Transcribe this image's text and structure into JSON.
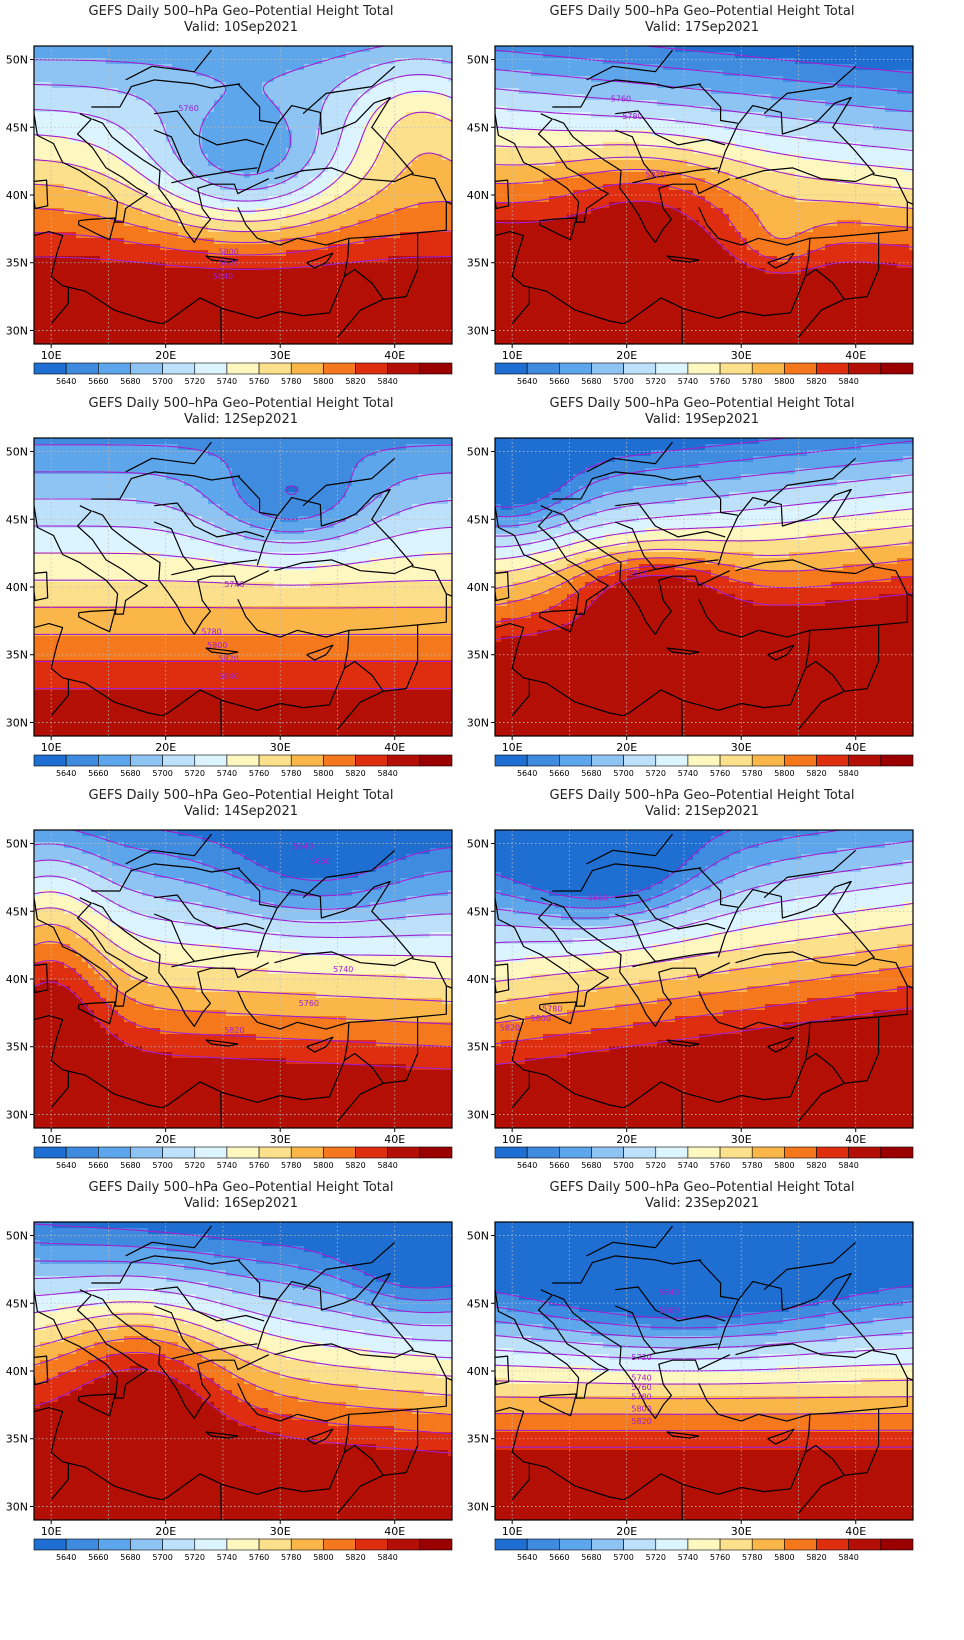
{
  "title_line": "GEFS Daily 500–hPa Geo–Potential Height Total",
  "valid_prefix": "Valid:",
  "lon_ticks": [
    "10E",
    "20E",
    "30E",
    "40E"
  ],
  "lat_ticks": [
    "50N",
    "45N",
    "40N",
    "35N",
    "30N"
  ],
  "colorbar": {
    "labels": [
      "5640",
      "5660",
      "5680",
      "5700",
      "5720",
      "5740",
      "5760",
      "5780",
      "5800",
      "5820",
      "5840"
    ],
    "colors": [
      "#1f6fd3",
      "#3f8be0",
      "#5ea6ec",
      "#8ec4f3",
      "#bde1fa",
      "#dcf4ff",
      "#fff7c0",
      "#fde08c",
      "#fbb64a",
      "#f6781d",
      "#df2d10",
      "#b30f04",
      "#9a0000"
    ]
  },
  "contour_color": "#a020d0",
  "panels": [
    {
      "valid": "10Sep2021",
      "label_texts": [
        "5760",
        "5800",
        "5820",
        "5840"
      ]
    },
    {
      "valid": "17Sep2021",
      "label_texts": [
        "5760",
        "5780",
        "5820"
      ]
    },
    {
      "valid": "12Sep2021",
      "label_texts": [
        "5740",
        "5780",
        "5800",
        "5820",
        "5840"
      ]
    },
    {
      "valid": "19Sep2021",
      "label_texts": [
        "5820"
      ]
    },
    {
      "valid": "14Sep2021",
      "label_texts": [
        "5640",
        "5660",
        "5740",
        "5760",
        "5820"
      ]
    },
    {
      "valid": "21Sep2021",
      "label_texts": [
        "5660",
        "5780",
        "5800",
        "5820"
      ]
    },
    {
      "valid": "16Sep2021",
      "label_texts": []
    },
    {
      "valid": "23Sep2021",
      "label_texts": [
        "5640",
        "5660",
        "5720",
        "5740",
        "5760",
        "5780",
        "5800",
        "5820"
      ]
    }
  ]
}
